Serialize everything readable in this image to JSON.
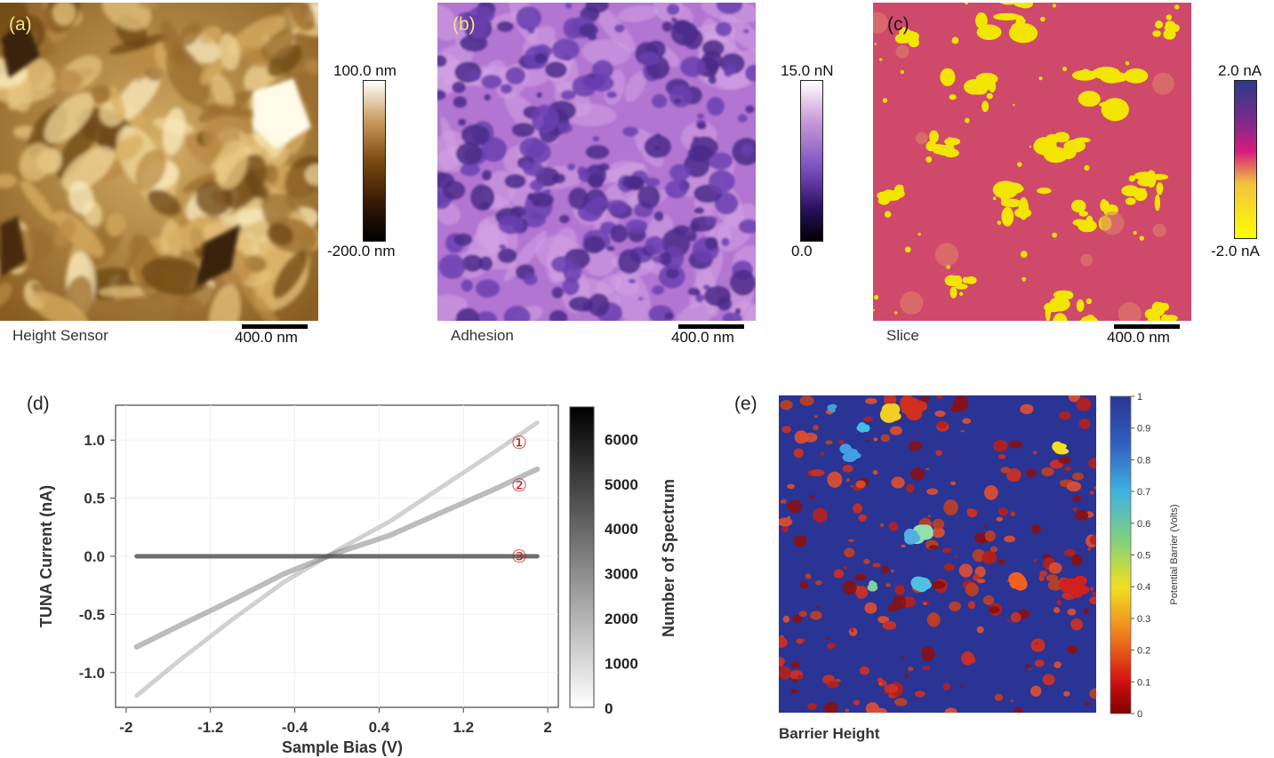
{
  "panels": {
    "a": {
      "label": "(a)",
      "caption": "Height Sensor",
      "scale_bar": "400.0 nm",
      "colorbar": {
        "max": "100.0 nm",
        "min": "-200.0 nm"
      },
      "colors": {
        "low": "#000000",
        "mid": "#7a4a12",
        "high": "#ffffff",
        "surface": "#c49a52"
      }
    },
    "b": {
      "label": "(b)",
      "caption": "Adhesion",
      "scale_bar": "400.0 nm",
      "colorbar": {
        "max": "15.0 nN",
        "min": "0.0"
      },
      "colors": {
        "low": "#000000",
        "mid": "#7a4fc0",
        "high": "#ffffff",
        "surface": "#b070d0"
      }
    },
    "c": {
      "label": "(c)",
      "caption": "Slice",
      "scale_bar": "400.0 nm",
      "colorbar": {
        "max": "2.0 nA",
        "min": "-2.0 nA"
      },
      "colors": {
        "low": "#ffff00",
        "mid": "#d81c7c",
        "high": "#2a3c8c",
        "surface": "#cf4a6a",
        "grains": "#f2e600"
      }
    },
    "d": {
      "label": "(d)",
      "curve_markers": [
        "①",
        "②",
        "③"
      ]
    },
    "e": {
      "label": "(e)",
      "caption": "Barrier Height",
      "colors": {
        "background": "#2a3494",
        "hot": "#b82018"
      }
    }
  },
  "chart_data": [
    {
      "type": "line",
      "panel": "d",
      "xlabel": "Sample Bias (V)",
      "ylabel": "TUNA Current (nA)",
      "x_ticks": [
        "-2",
        "-1.2",
        "-0.4",
        "0.4",
        "1.2",
        "2"
      ],
      "x_tick_values": [
        -2,
        -1.2,
        -0.4,
        0.4,
        1.2,
        2
      ],
      "y_ticks": [
        "1.0",
        "0.5",
        "0.0",
        "-0.5",
        "-1.0"
      ],
      "y_tick_values": [
        1.0,
        0.5,
        0.0,
        -0.5,
        -1.0
      ],
      "xlim": [
        -2.1,
        2.1
      ],
      "ylim": [
        -1.3,
        1.3
      ],
      "series": [
        {
          "label": "①",
          "x": [
            -1.9,
            -1.5,
            -1.0,
            -0.5,
            0.0,
            0.5,
            1.0,
            1.5,
            1.9
          ],
          "y": [
            -1.2,
            -0.9,
            -0.55,
            -0.22,
            0.05,
            0.3,
            0.6,
            0.9,
            1.15
          ]
        },
        {
          "label": "②",
          "x": [
            -1.9,
            -1.5,
            -1.0,
            -0.5,
            0.0,
            0.5,
            1.0,
            1.5,
            1.9
          ],
          "y": [
            -0.78,
            -0.6,
            -0.38,
            -0.15,
            0.03,
            0.18,
            0.38,
            0.58,
            0.75
          ]
        },
        {
          "label": "③",
          "x": [
            -1.9,
            -1.0,
            0.0,
            1.0,
            1.9
          ],
          "y": [
            0.0,
            0.0,
            0.0,
            0.0,
            0.0
          ]
        }
      ],
      "colorbar": {
        "label": "Number of Spectrum",
        "ticks": [
          "6000",
          "5000",
          "4000",
          "3000",
          "2000",
          "1000",
          "0"
        ],
        "tick_values": [
          6000,
          5000,
          4000,
          3000,
          2000,
          1000,
          0
        ],
        "range": [
          0,
          6700
        ]
      }
    },
    {
      "type": "heatmap",
      "panel": "e",
      "colorbar": {
        "label": "Potential Barrier (Volts)",
        "ticks": [
          "1",
          "0.9",
          "0.8",
          "0.7",
          "0.6",
          "0.5",
          "0.4",
          "0.3",
          "0.2",
          "0.1",
          "0"
        ],
        "tick_values": [
          1,
          0.9,
          0.8,
          0.7,
          0.6,
          0.5,
          0.4,
          0.3,
          0.2,
          0.1,
          0
        ],
        "range": [
          0,
          1
        ],
        "colormap": "jet"
      }
    }
  ]
}
